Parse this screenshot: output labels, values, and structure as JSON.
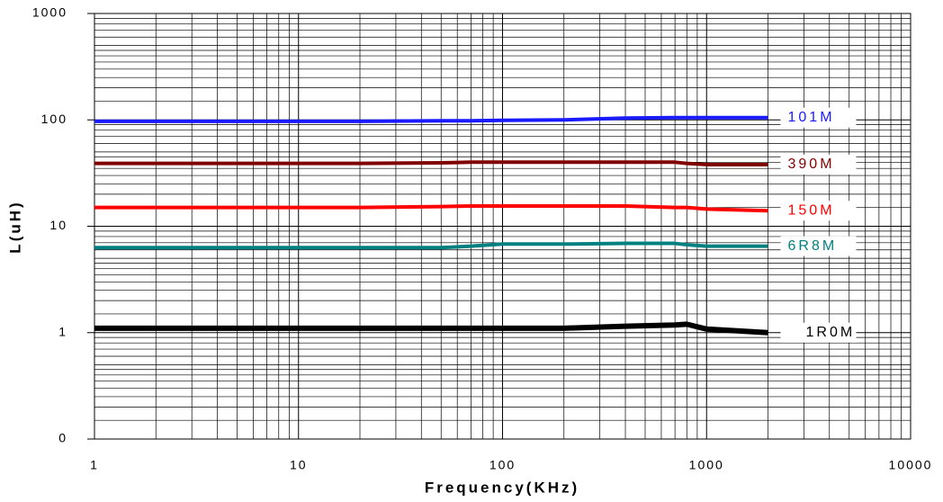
{
  "chart_data": {
    "type": "line",
    "x_label": "Frequency(KHz)",
    "y_label": "L(uH)",
    "x": [
      1,
      2,
      5,
      10,
      20,
      50,
      70,
      100,
      200,
      400,
      700,
      800,
      1000,
      2000
    ],
    "series": [
      {
        "name": "101M",
        "color": "#1a1aff",
        "values": [
          97,
          97,
          97,
          97,
          97,
          98,
          98,
          99,
          100,
          104,
          105,
          105,
          105,
          105
        ]
      },
      {
        "name": "390M",
        "color": "#800000",
        "values": [
          39,
          39,
          39,
          39,
          39,
          39.5,
          40,
          40,
          40,
          40,
          40,
          39,
          38,
          38
        ]
      },
      {
        "name": "150M",
        "color": "#ff0000",
        "values": [
          15,
          15,
          15,
          15,
          15,
          15.3,
          15.5,
          15.5,
          15.5,
          15.5,
          15,
          15,
          14.5,
          14
        ]
      },
      {
        "name": "6R8M",
        "color": "#008080",
        "values": [
          6.3,
          6.3,
          6.3,
          6.3,
          6.3,
          6.3,
          6.5,
          6.8,
          6.8,
          6.9,
          6.9,
          6.7,
          6.5,
          6.5
        ]
      },
      {
        "name": "1R0M",
        "color": "#000000",
        "values": [
          1.1,
          1.1,
          1.1,
          1.1,
          1.1,
          1.1,
          1.1,
          1.1,
          1.1,
          1.15,
          1.18,
          1.2,
          1.08,
          1.0
        ]
      }
    ],
    "xlim": [
      1,
      10000
    ],
    "xticks": [
      1,
      10,
      100,
      1000,
      10000
    ],
    "ylim": [
      0.1,
      1000
    ],
    "yticks": [
      {
        "value": 0.1,
        "label": "0"
      },
      1,
      10,
      100,
      1000
    ],
    "xscale": "log",
    "yscale": "log",
    "grid": true,
    "minor_grid": true
  }
}
